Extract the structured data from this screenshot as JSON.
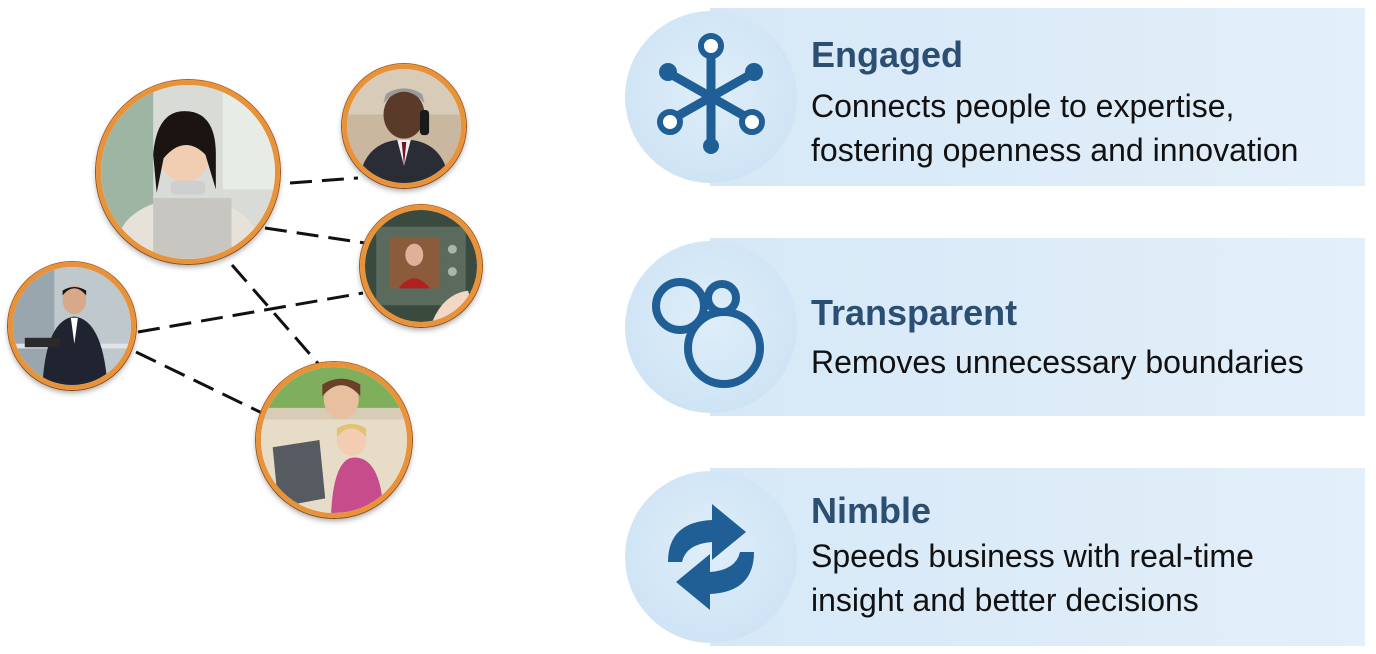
{
  "features": [
    {
      "title": "Engaged",
      "description": "Connects people to expertise,\nfostering openness and innovation",
      "icon": "network-hub-icon"
    },
    {
      "title": "Transparent",
      "description": "Removes unnecessary boundaries",
      "icon": "bubbles-icon"
    },
    {
      "title": "Nimble",
      "description": "Speeds business with real-time\ninsight and better decisions",
      "icon": "refresh-arrows-icon"
    }
  ],
  "colors": {
    "accent": "#1f5f96",
    "title": "#2b4f72",
    "band": "#dcebf8",
    "ring": "#e8923a"
  },
  "people": [
    {
      "name": "woman-at-webcam"
    },
    {
      "name": "man-on-phone"
    },
    {
      "name": "video-device"
    },
    {
      "name": "businessman-with-tablet"
    },
    {
      "name": "mother-and-child-laptop"
    }
  ]
}
